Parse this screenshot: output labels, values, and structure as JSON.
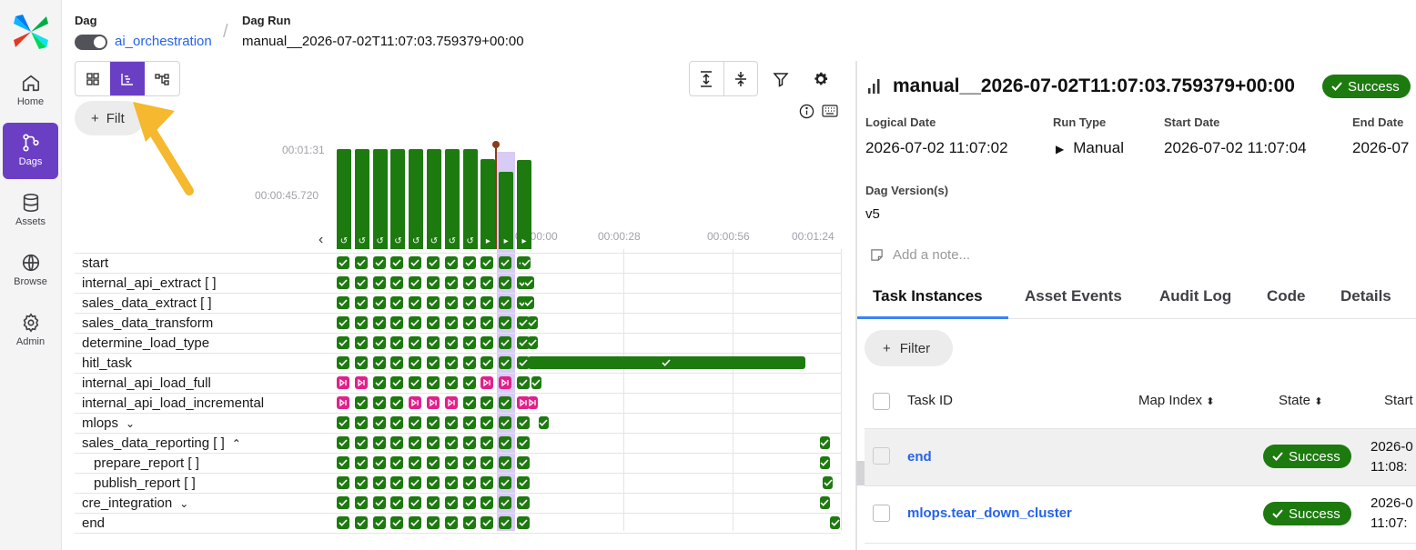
{
  "header": {
    "dag_label": "Dag",
    "dag_name": "ai_orchestration",
    "dag_run_label": "Dag Run",
    "dag_run_id": "manual__2026-07-02T11:07:03.759379+00:00"
  },
  "sidebar": {
    "items": [
      {
        "label": "Home",
        "icon": "home-icon"
      },
      {
        "label": "Dags",
        "icon": "dags-icon"
      },
      {
        "label": "Assets",
        "icon": "database-icon"
      },
      {
        "label": "Browse",
        "icon": "globe-icon"
      },
      {
        "label": "Admin",
        "icon": "gear-icon"
      }
    ]
  },
  "toolbar": {
    "filter_label": "Filter",
    "filter_visible": "Filt"
  },
  "grid": {
    "duration_ticks": [
      "00:01:31",
      "00:00:45.720"
    ],
    "time_ticks": [
      "00:00:00",
      "00:00:28",
      "00:00:56",
      "00:01:24"
    ],
    "run_durations_sec": [
      91,
      91,
      91,
      91,
      91,
      91,
      91,
      91,
      82,
      70,
      81
    ],
    "run_glyphs": [
      "↺",
      "↺",
      "↺",
      "↺",
      "↺",
      "↺",
      "↺",
      "↺",
      "▸",
      "▸",
      "▸"
    ],
    "tasks": [
      {
        "name": "start",
        "states": "sssssssssss",
        "gantt_start": 0,
        "gantt_end": 0,
        "indent": false,
        "chevron": ""
      },
      {
        "name": "internal_api_extract [ ]",
        "states": "sssssssssss",
        "gantt_start": 1,
        "gantt_end": 1,
        "indent": false,
        "chevron": ""
      },
      {
        "name": "sales_data_extract [ ]",
        "states": "sssssssssss",
        "gantt_start": 1,
        "gantt_end": 1,
        "indent": false,
        "chevron": ""
      },
      {
        "name": "sales_data_transform",
        "states": "sssssssssss",
        "gantt_start": 2,
        "gantt_end": 2,
        "indent": false,
        "chevron": ""
      },
      {
        "name": "determine_load_type",
        "states": "sssssssssss",
        "gantt_start": 2,
        "gantt_end": 2,
        "indent": false,
        "chevron": ""
      },
      {
        "name": "hitl_task",
        "states": "sssssssssss",
        "gantt_start": 2,
        "gantt_end": 80,
        "indent": false,
        "chevron": ""
      },
      {
        "name": "internal_api_load_full",
        "states": "kksssssskks",
        "gantt_start": 3,
        "gantt_end": 3,
        "indent": false,
        "chevron": ""
      },
      {
        "name": "internal_api_load_incremental",
        "states": "kssskkksssk",
        "gantt_start": 2,
        "gantt_end": 2,
        "indent": false,
        "chevron": "",
        "last_gantt": "skip"
      },
      {
        "name": "mlops",
        "states": "sssssssssss",
        "gantt_start": 5,
        "gantt_end": 5,
        "indent": false,
        "chevron": "⌄"
      },
      {
        "name": "sales_data_reporting [ ]",
        "states": "sssssssssss",
        "gantt_start": 84,
        "gantt_end": 84,
        "indent": false,
        "chevron": "⌃"
      },
      {
        "name": "prepare_report [ ]",
        "states": "sssssssssss",
        "gantt_start": 84,
        "gantt_end": 84,
        "indent": true,
        "chevron": ""
      },
      {
        "name": "publish_report [ ]",
        "states": "sssssssssss",
        "gantt_start": 85,
        "gantt_end": 85,
        "indent": true,
        "chevron": ""
      },
      {
        "name": "cre_integration",
        "states": "sssssssssss",
        "gantt_start": 84,
        "gantt_end": 84,
        "indent": false,
        "chevron": "⌄"
      },
      {
        "name": "end",
        "states": "sssssssssss",
        "gantt_start": 87,
        "gantt_end": 87,
        "indent": false,
        "chevron": ""
      }
    ]
  },
  "details": {
    "run_id": "manual__2026-07-02T11:07:03.759379+00:00",
    "status": "Success",
    "logical_date_label": "Logical Date",
    "logical_date": "2026-07-02 11:07:02",
    "run_type_label": "Run Type",
    "run_type": "Manual",
    "start_date_label": "Start Date",
    "start_date": "2026-07-02 11:07:04",
    "end_date_label": "End Date",
    "end_date": "2026-07",
    "dag_version_label": "Dag Version(s)",
    "dag_version": "v5",
    "note_placeholder": "Add a note...",
    "tabs": [
      "Task Instances",
      "Asset Events",
      "Audit Log",
      "Code",
      "Details"
    ],
    "filter_label": "Filter",
    "columns": [
      "Task ID",
      "Map Index",
      "State",
      "Start"
    ],
    "column_visible_start": "Start",
    "rows": [
      {
        "task_id": "end",
        "state": "Success",
        "start_line1": "2026-0",
        "start_line2": "11:08:"
      },
      {
        "task_id": "mlops.tear_down_cluster",
        "state": "Success",
        "start_line1": "2026-0",
        "start_line2": "11:07:"
      }
    ]
  },
  "colors": {
    "success": "#1d7a0f",
    "skipped": "#e0218a",
    "accent": "#6b3fc4",
    "link": "#2563eb",
    "arrow": "#f5b82e"
  }
}
